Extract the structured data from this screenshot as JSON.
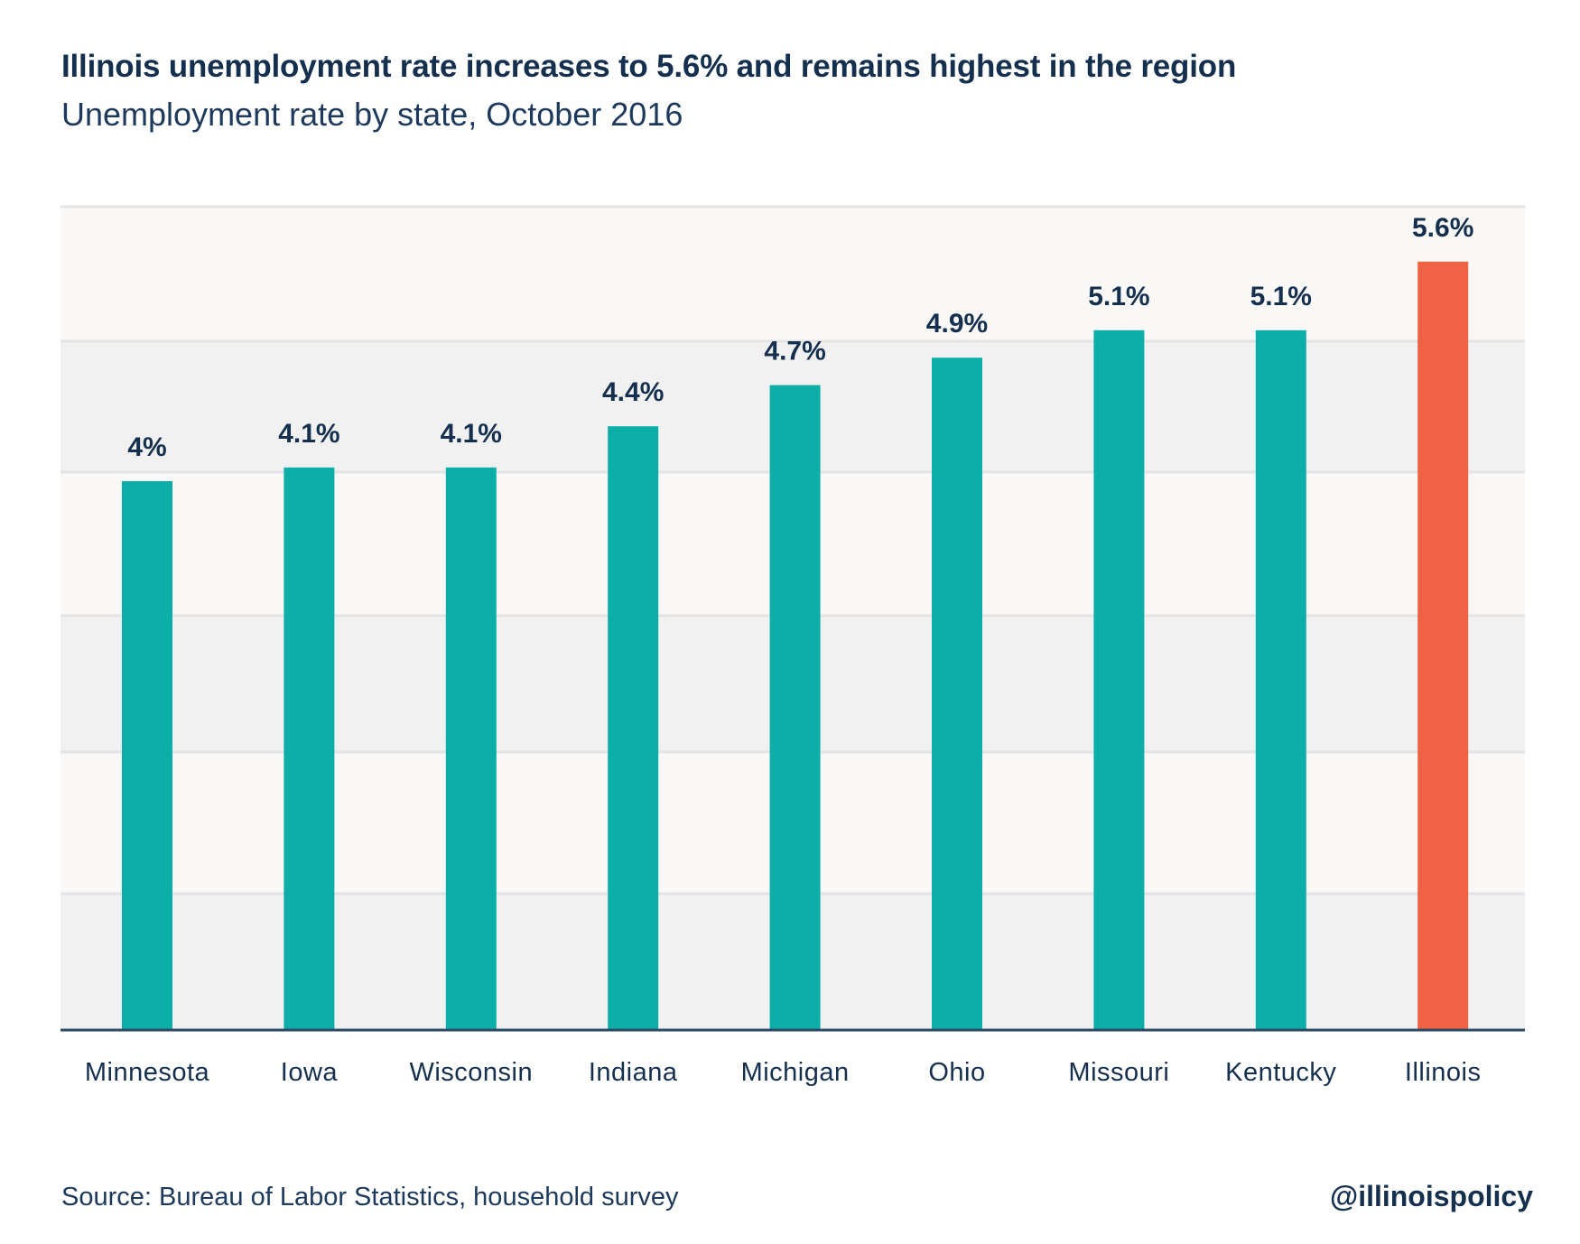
{
  "chart_data": {
    "type": "bar",
    "title": "Illinois unemployment rate increases to 5.6% and remains highest in the region",
    "subtitle": "Unemployment rate by state, October 2016",
    "categories": [
      "Minnesota",
      "Iowa",
      "Wisconsin",
      "Indiana",
      "Michigan",
      "Ohio",
      "Missouri",
      "Kentucky",
      "Illinois"
    ],
    "values": [
      4.0,
      4.1,
      4.1,
      4.4,
      4.7,
      4.9,
      5.1,
      5.1,
      5.6
    ],
    "data_labels": [
      "4%",
      "4.1%",
      "4.1%",
      "4.4%",
      "4.7%",
      "4.9%",
      "5.1%",
      "5.1%",
      "5.6%"
    ],
    "highlight": "Illinois",
    "xlabel": "",
    "ylabel": "",
    "ylim": [
      0,
      6
    ],
    "grid": true,
    "colors": {
      "default": "#0caea8",
      "highlight": "#ef6243",
      "text": "#15304f",
      "axis": "#2c4a66"
    },
    "source": "Source: Bureau of Labor Statistics, household survey",
    "credit": "@illinoispolicy"
  }
}
